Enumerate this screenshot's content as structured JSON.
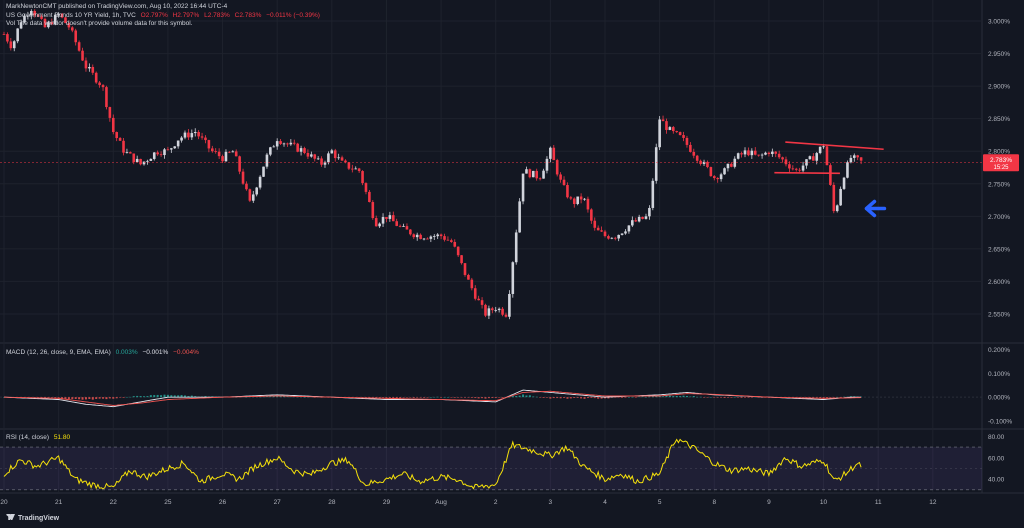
{
  "header": {
    "published": "MarkNewtonCMT published on TradingView.com, Aug 10, 2022 16:44 UTC-4",
    "symbol": "US Government Bonds 10 YR Yield, 1h, TVC",
    "o": "O2.797%",
    "h": "H2.797%",
    "l": "L2.783%",
    "c": "C2.783%",
    "chg": "−0.011% (−0.39%)",
    "note": "Vol  The data vendor doesn't provide volume data for this symbol."
  },
  "macd_label": {
    "name": "MACD (12, 26, close, 9, EMA, EMA)",
    "v1": "0.003%",
    "v2": "−0.001%",
    "v3": "−0.004%"
  },
  "rsi_label": {
    "name": "RSI (14, close)",
    "value": "51.80"
  },
  "price_tag": {
    "value": "2.783%",
    "time": "15:25"
  },
  "footer": {
    "brand": "TradingView"
  },
  "colors": {
    "bg": "#131722",
    "up": "#d1d4dc",
    "down": "#f23645",
    "trendline": "#f23645",
    "arrow": "#2962ff",
    "macd": "#e1e3eb",
    "signal": "#ef5350",
    "rsi": "#f5e10b",
    "hist_up": "#26a69a",
    "hist_down": "#ef5350",
    "grid": "#1e222d"
  },
  "chart_data": [
    {
      "type": "candlestick",
      "panel": "price",
      "title": "US Government Bonds 10 YR Yield, 1h, TVC",
      "y_ticks": [
        "3.000%",
        "2.950%",
        "2.900%",
        "2.850%",
        "2.800%",
        "2.750%",
        "2.700%",
        "2.650%",
        "2.600%",
        "2.550%"
      ],
      "y_tick_values": [
        3.0,
        2.95,
        2.9,
        2.85,
        2.8,
        2.75,
        2.7,
        2.65,
        2.6,
        2.55
      ],
      "ylim": [
        2.51,
        3.02
      ],
      "x_ticks": [
        "20",
        "21",
        "22",
        "25",
        "26",
        "27",
        "28",
        "29",
        "Aug",
        "2",
        "3",
        "4",
        "5",
        "8",
        "9",
        "10",
        "11",
        "12"
      ],
      "x_tick_sessions": [
        0,
        1,
        2,
        3,
        4,
        5,
        6,
        7,
        8,
        9,
        10,
        11,
        12,
        13,
        14,
        15,
        16,
        17
      ],
      "xlim": [
        0,
        17.9
      ],
      "close_path": {
        "session": [
          0,
          0.15,
          0.3,
          0.5,
          0.75,
          1.0,
          1.2,
          1.5,
          1.8,
          2.0,
          2.2,
          2.5,
          2.8,
          3.0,
          3.2,
          3.5,
          3.8,
          4.0,
          4.2,
          4.5,
          4.8,
          5.0,
          5.2,
          5.5,
          5.8,
          6.0,
          6.2,
          6.5,
          6.8,
          7.0,
          7.3,
          7.6,
          7.9,
          8.0,
          8.2,
          8.5,
          8.8,
          9.0,
          9.2,
          9.5,
          9.8,
          10.0,
          10.2,
          10.4,
          10.6,
          10.8,
          11.0,
          11.2,
          11.5,
          11.8,
          12.0,
          12.2,
          12.4,
          12.6,
          12.8,
          13.0,
          13.2,
          13.4,
          13.6,
          13.8,
          14.0,
          14.2,
          14.5,
          14.8,
          15.0,
          15.1,
          15.2,
          15.35,
          15.5,
          15.7
        ],
        "close": [
          2.98,
          2.96,
          3.0,
          3.02,
          2.99,
          3.01,
          2.99,
          2.93,
          2.9,
          2.83,
          2.8,
          2.78,
          2.8,
          2.8,
          2.82,
          2.83,
          2.8,
          2.79,
          2.8,
          2.72,
          2.79,
          2.82,
          2.81,
          2.8,
          2.78,
          2.8,
          2.78,
          2.77,
          2.69,
          2.7,
          2.68,
          2.67,
          2.67,
          2.67,
          2.66,
          2.6,
          2.55,
          2.56,
          2.55,
          2.77,
          2.76,
          2.8,
          2.75,
          2.72,
          2.73,
          2.68,
          2.67,
          2.67,
          2.69,
          2.7,
          2.85,
          2.83,
          2.82,
          2.8,
          2.78,
          2.76,
          2.77,
          2.79,
          2.8,
          2.79,
          2.8,
          2.79,
          2.77,
          2.79,
          2.81,
          2.76,
          2.7,
          2.76,
          2.79,
          2.783
        ]
      },
      "annotations": {
        "trendline_upper": {
          "x": [
            14.3,
            16.1
          ],
          "y": [
            2.814,
            2.803
          ]
        },
        "trendline_lower": {
          "x": [
            14.1,
            15.3
          ],
          "y": [
            2.767,
            2.766
          ]
        },
        "arrow": {
          "x": 15.95,
          "y": 2.712,
          "direction": "left"
        },
        "last_price": 2.783
      }
    },
    {
      "type": "line",
      "panel": "macd",
      "title": "MACD (12, 26, close, 9, EMA, EMA)",
      "y_ticks": [
        "0.200%",
        "0.100%",
        "0.000%",
        "-0.100%"
      ],
      "y_tick_values": [
        0.2,
        0.1,
        0.0,
        -0.1
      ],
      "ylim": [
        -0.13,
        0.22
      ],
      "series": [
        {
          "name": "MACD",
          "session": [
            0,
            1,
            1.5,
            2,
            2.5,
            3,
            4,
            5,
            6,
            7,
            8,
            9,
            9.5,
            10,
            11,
            12,
            12.5,
            13,
            14,
            15,
            15.5,
            16
          ],
          "values": [
            0.0,
            -0.01,
            -0.03,
            -0.04,
            -0.02,
            0.0,
            0.0,
            0.01,
            0.0,
            -0.01,
            -0.01,
            -0.02,
            0.03,
            0.02,
            0.0,
            0.01,
            0.02,
            0.01,
            0.0,
            -0.01,
            0.0,
            0.0
          ]
        },
        {
          "name": "Signal",
          "session": [
            0,
            1,
            1.5,
            2,
            2.5,
            3,
            4,
            5,
            6,
            7,
            8,
            9,
            9.5,
            10,
            11,
            12,
            12.5,
            13,
            14,
            15,
            15.5,
            16
          ],
          "values": [
            0.0,
            -0.005,
            -0.02,
            -0.035,
            -0.025,
            -0.01,
            0.0,
            0.005,
            0.0,
            -0.005,
            -0.01,
            -0.015,
            0.02,
            0.025,
            0.005,
            0.005,
            0.015,
            0.012,
            0.0,
            -0.005,
            -0.003,
            0.0
          ]
        }
      ]
    },
    {
      "type": "line",
      "panel": "rsi",
      "title": "RSI (14, close)",
      "y_ticks": [
        "80.00",
        "60.00",
        "40.00"
      ],
      "y_tick_values": [
        80,
        60,
        40
      ],
      "ylim": [
        28,
        86
      ],
      "bands": [
        70,
        30
      ],
      "series": [
        {
          "name": "RSI",
          "session": [
            0,
            0.3,
            0.6,
            1.0,
            1.3,
            1.6,
            2.0,
            2.3,
            2.6,
            3.0,
            3.3,
            3.6,
            4.0,
            4.3,
            4.6,
            5.0,
            5.3,
            5.6,
            6.0,
            6.3,
            6.6,
            7.0,
            7.3,
            7.6,
            8.0,
            8.3,
            8.6,
            9.0,
            9.3,
            9.6,
            10.0,
            10.3,
            10.6,
            11.0,
            11.3,
            11.6,
            12.0,
            12.3,
            12.6,
            13.0,
            13.3,
            13.6,
            14.0,
            14.3,
            14.6,
            15.0,
            15.2,
            15.4,
            15.6,
            15.7
          ],
          "values": [
            45,
            58,
            52,
            60,
            40,
            35,
            32,
            48,
            42,
            50,
            55,
            38,
            45,
            40,
            52,
            60,
            48,
            44,
            55,
            58,
            35,
            40,
            45,
            38,
            42,
            40,
            32,
            35,
            72,
            68,
            62,
            70,
            52,
            40,
            45,
            38,
            45,
            78,
            70,
            55,
            48,
            50,
            45,
            60,
            52,
            58,
            38,
            45,
            54,
            52
          ]
        }
      ]
    }
  ]
}
